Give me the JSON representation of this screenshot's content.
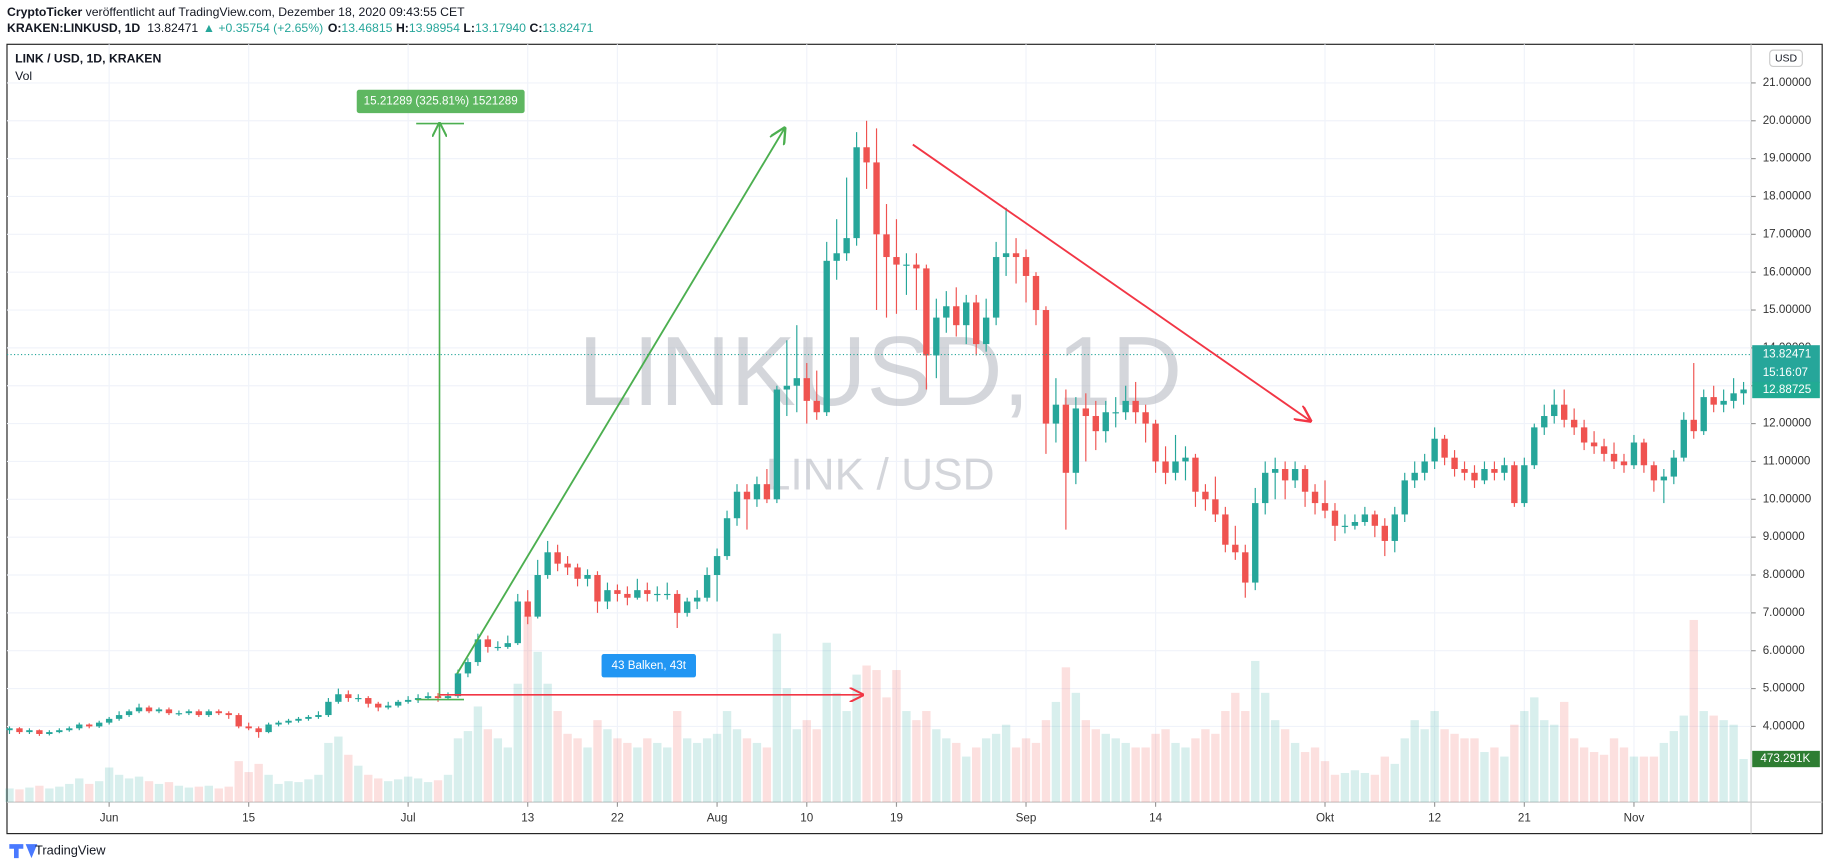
{
  "header": {
    "publisher": "CryptoTicker",
    "published": " veröffentlicht auf TradingView.com, Dezember 18, 2020 09:43:55 CET",
    "symbol": "KRAKEN:LINKUSD, 1D",
    "last": "13.82471",
    "change": "▲ +0.35754 (+2.65%)",
    "ohlc": [
      {
        "label": "O:",
        "value": "13.46815"
      },
      {
        "label": "H:",
        "value": "13.98954"
      },
      {
        "label": "L:",
        "value": "13.17940"
      },
      {
        "label": "C:",
        "value": "13.82471"
      }
    ]
  },
  "footer": "TradingView",
  "chart_data": {
    "type": "candlestick",
    "legend": [
      "LINK / USD, 1D, KRAKEN",
      "Vol"
    ],
    "watermark": [
      "LINKUSD, 1D",
      "LINK / USD"
    ],
    "currency": "USD",
    "up_color": "#26a69a",
    "down_color": "#ef5350",
    "grid": true,
    "xlim": [
      -0.25,
      174.75
    ],
    "xticks": [
      {
        "value": 10,
        "label": "Jun"
      },
      {
        "value": 24,
        "label": "15"
      },
      {
        "value": 40,
        "label": "Jul"
      },
      {
        "value": 52,
        "label": "13"
      },
      {
        "value": 61,
        "label": "22"
      },
      {
        "value": 71,
        "label": "Aug"
      },
      {
        "value": 80,
        "label": "10"
      },
      {
        "value": 89,
        "label": "19"
      },
      {
        "value": 102,
        "label": "Sep"
      },
      {
        "value": 115,
        "label": "14"
      },
      {
        "value": 132,
        "label": "Okt"
      },
      {
        "value": 143,
        "label": "12"
      },
      {
        "value": 152,
        "label": "21"
      },
      {
        "value": 163,
        "label": "Nov"
      }
    ],
    "ylim": [
      2.0,
      22.02
    ],
    "yticks": [
      {
        "value": 4,
        "label": "4.00000"
      },
      {
        "value": 5,
        "label": "5.00000"
      },
      {
        "value": 6,
        "label": "6.00000"
      },
      {
        "value": 7,
        "label": "7.00000"
      },
      {
        "value": 8,
        "label": "8.00000"
      },
      {
        "value": 9,
        "label": "9.00000"
      },
      {
        "value": 10,
        "label": "10.00000"
      },
      {
        "value": 11,
        "label": "11.00000"
      },
      {
        "value": 12,
        "label": "12.00000"
      },
      {
        "value": 13,
        "label": "13.00000"
      },
      {
        "value": 14,
        "label": "14.00000"
      },
      {
        "value": 15,
        "label": "15.00000"
      },
      {
        "value": 16,
        "label": "16.00000"
      },
      {
        "value": 17,
        "label": "17.00000"
      },
      {
        "value": 18,
        "label": "18.00000"
      },
      {
        "value": 19,
        "label": "19.00000"
      },
      {
        "value": 20,
        "label": "20.00000"
      },
      {
        "value": 21,
        "label": "21.00000"
      }
    ],
    "last_price": {
      "value": 13.82471,
      "label": "13.82471"
    },
    "countdown": "15:16:07",
    "second_price": {
      "value": 12.88725,
      "label": "12.88725"
    },
    "volume_lim": [
      0,
      8320
    ],
    "volume_label": {
      "value": 473.291,
      "label": "473.291K"
    },
    "annotations": {
      "price_range": "15.21289 (325.81%) 1521289",
      "date_range": "43 Balken, 43t"
    },
    "candles": [
      [
        3.9,
        4.0,
        3.8,
        3.95
      ],
      [
        3.95,
        3.98,
        3.8,
        3.85
      ],
      [
        3.85,
        3.95,
        3.8,
        3.9
      ],
      [
        3.9,
        3.92,
        3.75,
        3.8
      ],
      [
        3.8,
        3.9,
        3.76,
        3.85
      ],
      [
        3.85,
        3.95,
        3.82,
        3.9
      ],
      [
        3.9,
        4.0,
        3.86,
        3.95
      ],
      [
        3.95,
        4.1,
        3.9,
        4.05
      ],
      [
        4.05,
        4.08,
        3.95,
        4.0
      ],
      [
        4.0,
        4.15,
        3.96,
        4.1
      ],
      [
        4.1,
        4.25,
        4.05,
        4.2
      ],
      [
        4.2,
        4.4,
        4.15,
        4.3
      ],
      [
        4.3,
        4.45,
        4.25,
        4.4
      ],
      [
        4.4,
        4.6,
        4.35,
        4.5
      ],
      [
        4.5,
        4.55,
        4.35,
        4.4
      ],
      [
        4.4,
        4.5,
        4.35,
        4.45
      ],
      [
        4.45,
        4.5,
        4.3,
        4.35
      ],
      [
        4.35,
        4.42,
        4.28,
        4.35
      ],
      [
        4.35,
        4.45,
        4.3,
        4.4
      ],
      [
        4.4,
        4.45,
        4.25,
        4.3
      ],
      [
        4.3,
        4.45,
        4.25,
        4.4
      ],
      [
        4.4,
        4.45,
        4.3,
        4.35
      ],
      [
        4.35,
        4.4,
        4.2,
        4.3
      ],
      [
        4.3,
        4.35,
        3.95,
        4.0
      ],
      [
        4.0,
        4.1,
        3.9,
        3.95
      ],
      [
        3.95,
        4.0,
        3.7,
        3.85
      ],
      [
        3.85,
        4.1,
        3.82,
        4.05
      ],
      [
        4.05,
        4.15,
        4.0,
        4.1
      ],
      [
        4.1,
        4.2,
        4.05,
        4.15
      ],
      [
        4.15,
        4.25,
        4.1,
        4.2
      ],
      [
        4.2,
        4.3,
        4.15,
        4.25
      ],
      [
        4.25,
        4.4,
        4.2,
        4.3
      ],
      [
        4.3,
        4.75,
        4.25,
        4.65
      ],
      [
        4.65,
        5.0,
        4.6,
        4.85
      ],
      [
        4.85,
        4.95,
        4.65,
        4.75
      ],
      [
        4.75,
        4.85,
        4.65,
        4.75
      ],
      [
        4.75,
        4.8,
        4.5,
        4.6
      ],
      [
        4.6,
        4.65,
        4.4,
        4.5
      ],
      [
        4.5,
        4.65,
        4.45,
        4.55
      ],
      [
        4.55,
        4.7,
        4.5,
        4.65
      ],
      [
        4.65,
        4.8,
        4.6,
        4.7
      ],
      [
        4.7,
        4.85,
        4.62,
        4.75
      ],
      [
        4.75,
        4.9,
        4.7,
        4.8
      ],
      [
        4.8,
        4.88,
        4.65,
        4.75
      ],
      [
        4.75,
        4.9,
        4.7,
        4.8
      ],
      [
        4.8,
        5.5,
        4.75,
        5.4
      ],
      [
        5.4,
        5.8,
        5.3,
        5.7
      ],
      [
        5.7,
        6.45,
        5.6,
        6.3
      ],
      [
        6.3,
        6.4,
        5.95,
        6.1
      ],
      [
        6.1,
        6.25,
        6.0,
        6.1
      ],
      [
        6.1,
        6.4,
        6.05,
        6.2
      ],
      [
        6.2,
        7.5,
        6.15,
        7.3
      ],
      [
        7.3,
        7.6,
        6.7,
        6.9
      ],
      [
        6.9,
        8.4,
        6.85,
        8.0
      ],
      [
        8.0,
        8.9,
        7.9,
        8.6
      ],
      [
        8.6,
        8.8,
        8.1,
        8.3
      ],
      [
        8.3,
        8.5,
        8.0,
        8.2
      ],
      [
        8.2,
        8.3,
        7.7,
        7.9
      ],
      [
        7.9,
        8.15,
        7.7,
        8.0
      ],
      [
        8.0,
        8.1,
        7.0,
        7.3
      ],
      [
        7.3,
        7.8,
        7.1,
        7.6
      ],
      [
        7.6,
        7.75,
        7.3,
        7.5
      ],
      [
        7.5,
        7.7,
        7.2,
        7.4
      ],
      [
        7.4,
        7.9,
        7.35,
        7.6
      ],
      [
        7.6,
        7.8,
        7.3,
        7.5
      ],
      [
        7.5,
        7.7,
        7.3,
        7.5
      ],
      [
        7.5,
        7.8,
        7.35,
        7.5
      ],
      [
        7.5,
        7.6,
        6.6,
        7.0
      ],
      [
        7.0,
        7.4,
        6.9,
        7.3
      ],
      [
        7.3,
        7.6,
        7.1,
        7.4
      ],
      [
        7.4,
        8.2,
        7.3,
        8.0
      ],
      [
        8.0,
        8.7,
        7.3,
        8.5
      ],
      [
        8.5,
        9.7,
        8.4,
        9.5
      ],
      [
        9.5,
        10.4,
        9.3,
        10.2
      ],
      [
        10.2,
        10.4,
        9.2,
        10.0
      ],
      [
        10.0,
        10.6,
        9.8,
        10.4
      ],
      [
        10.4,
        10.8,
        9.9,
        10.0
      ],
      [
        10.0,
        13.0,
        9.9,
        12.9
      ],
      [
        12.9,
        14.2,
        12.2,
        13.0
      ],
      [
        13.0,
        14.6,
        12.3,
        13.2
      ],
      [
        13.2,
        13.6,
        12.0,
        12.6
      ],
      [
        12.6,
        13.4,
        12.1,
        12.3
      ],
      [
        12.3,
        16.8,
        12.2,
        16.3
      ],
      [
        16.3,
        17.4,
        15.8,
        16.5
      ],
      [
        16.5,
        18.5,
        16.3,
        16.9
      ],
      [
        16.9,
        19.7,
        16.7,
        19.3
      ],
      [
        19.3,
        20.0,
        18.2,
        18.9
      ],
      [
        18.9,
        19.8,
        15.0,
        17.0
      ],
      [
        17.0,
        17.8,
        14.8,
        16.4
      ],
      [
        16.4,
        17.4,
        14.9,
        16.2
      ],
      [
        16.2,
        16.5,
        15.4,
        16.2
      ],
      [
        16.2,
        16.5,
        15.0,
        16.1
      ],
      [
        16.1,
        16.2,
        12.9,
        13.8
      ],
      [
        13.8,
        15.3,
        13.2,
        14.8
      ],
      [
        14.8,
        15.5,
        14.4,
        15.1
      ],
      [
        15.1,
        15.6,
        14.3,
        14.6
      ],
      [
        14.6,
        15.4,
        14.1,
        15.2
      ],
      [
        15.2,
        15.4,
        13.8,
        14.1
      ],
      [
        14.1,
        15.3,
        13.9,
        14.8
      ],
      [
        14.8,
        16.8,
        14.6,
        16.4
      ],
      [
        16.4,
        17.7,
        15.9,
        16.5
      ],
      [
        16.5,
        16.9,
        15.7,
        16.4
      ],
      [
        16.4,
        16.6,
        15.2,
        15.9
      ],
      [
        15.9,
        16.0,
        14.6,
        15.0
      ],
      [
        15.0,
        15.1,
        11.2,
        12.0
      ],
      [
        12.0,
        13.2,
        11.5,
        12.5
      ],
      [
        12.5,
        12.9,
        9.2,
        10.7
      ],
      [
        10.7,
        12.7,
        10.4,
        12.4
      ],
      [
        12.4,
        12.8,
        11.0,
        12.2
      ],
      [
        12.2,
        12.6,
        11.3,
        11.8
      ],
      [
        11.8,
        12.6,
        11.5,
        12.3
      ],
      [
        12.3,
        12.7,
        11.9,
        12.3
      ],
      [
        12.3,
        13.0,
        12.1,
        12.6
      ],
      [
        12.6,
        13.1,
        12.0,
        12.3
      ],
      [
        12.3,
        12.5,
        11.5,
        12.0
      ],
      [
        12.0,
        12.1,
        10.7,
        11.0
      ],
      [
        11.0,
        11.4,
        10.4,
        10.7
      ],
      [
        10.7,
        11.7,
        10.5,
        11.0
      ],
      [
        11.0,
        11.4,
        10.5,
        11.1
      ],
      [
        11.1,
        11.2,
        9.8,
        10.2
      ],
      [
        10.2,
        10.4,
        9.7,
        10.0
      ],
      [
        10.0,
        10.6,
        9.4,
        9.6
      ],
      [
        9.6,
        9.8,
        8.6,
        8.8
      ],
      [
        8.8,
        9.3,
        8.4,
        8.6
      ],
      [
        8.6,
        8.8,
        7.4,
        7.8
      ],
      [
        7.8,
        10.3,
        7.6,
        9.9
      ],
      [
        9.9,
        11.0,
        9.6,
        10.7
      ],
      [
        10.7,
        11.1,
        10.0,
        10.8
      ],
      [
        10.8,
        11.0,
        10.0,
        10.5
      ],
      [
        10.5,
        11.0,
        10.3,
        10.8
      ],
      [
        10.8,
        10.9,
        9.8,
        10.2
      ],
      [
        10.2,
        10.4,
        9.6,
        9.9
      ],
      [
        9.9,
        10.5,
        9.5,
        9.7
      ],
      [
        9.7,
        9.9,
        8.9,
        9.3
      ],
      [
        9.3,
        9.6,
        9.1,
        9.3
      ],
      [
        9.3,
        9.6,
        9.2,
        9.4
      ],
      [
        9.4,
        9.8,
        9.3,
        9.6
      ],
      [
        9.6,
        9.7,
        9.0,
        9.3
      ],
      [
        9.3,
        9.5,
        8.5,
        8.9
      ],
      [
        8.9,
        9.8,
        8.6,
        9.6
      ],
      [
        9.6,
        10.7,
        9.4,
        10.5
      ],
      [
        10.5,
        11.0,
        10.3,
        10.7
      ],
      [
        10.7,
        11.2,
        10.5,
        11.0
      ],
      [
        11.0,
        11.9,
        10.8,
        11.6
      ],
      [
        11.6,
        11.7,
        10.9,
        11.1
      ],
      [
        11.1,
        11.3,
        10.6,
        10.8
      ],
      [
        10.8,
        11.0,
        10.5,
        10.7
      ],
      [
        10.7,
        10.9,
        10.3,
        10.5
      ],
      [
        10.5,
        11.0,
        10.4,
        10.8
      ],
      [
        10.8,
        11.0,
        10.5,
        10.7
      ],
      [
        10.7,
        11.1,
        10.5,
        10.9
      ],
      [
        10.9,
        11.0,
        9.8,
        9.9
      ],
      [
        9.9,
        11.1,
        9.8,
        10.9
      ],
      [
        10.9,
        12.0,
        10.8,
        11.9
      ],
      [
        11.9,
        12.5,
        11.7,
        12.2
      ],
      [
        12.2,
        12.9,
        12.0,
        12.5
      ],
      [
        12.5,
        12.9,
        11.9,
        12.1
      ],
      [
        12.1,
        12.4,
        11.7,
        11.9
      ],
      [
        11.9,
        12.1,
        11.3,
        11.5
      ],
      [
        11.5,
        11.8,
        11.2,
        11.4
      ],
      [
        11.4,
        11.6,
        11.0,
        11.2
      ],
      [
        11.2,
        11.5,
        10.8,
        11.0
      ],
      [
        11.0,
        11.2,
        10.7,
        10.9
      ],
      [
        10.9,
        11.7,
        10.8,
        11.5
      ],
      [
        11.5,
        11.6,
        10.7,
        10.9
      ],
      [
        10.9,
        11.0,
        10.2,
        10.5
      ],
      [
        10.5,
        10.8,
        9.9,
        10.6
      ],
      [
        10.6,
        11.3,
        10.4,
        11.1
      ],
      [
        11.1,
        12.3,
        11.0,
        12.1
      ],
      [
        12.1,
        13.6,
        11.6,
        11.8
      ],
      [
        11.8,
        12.9,
        11.7,
        12.7
      ],
      [
        12.7,
        13.0,
        12.3,
        12.5
      ],
      [
        12.5,
        12.9,
        12.3,
        12.6
      ],
      [
        12.6,
        13.2,
        12.4,
        12.8
      ],
      [
        12.8,
        13.1,
        12.5,
        12.9
      ]
    ],
    "volume": [
      150,
      140,
      160,
      180,
      150,
      170,
      200,
      260,
      200,
      230,
      380,
      300,
      260,
      280,
      230,
      200,
      220,
      180,
      160,
      170,
      180,
      150,
      170,
      450,
      330,
      420,
      300,
      200,
      230,
      220,
      250,
      300,
      650,
      720,
      520,
      400,
      300,
      260,
      230,
      250,
      280,
      260,
      220,
      240,
      300,
      700,
      780,
      1050,
      800,
      700,
      600,
      1300,
      2050,
      1650,
      1300,
      1000,
      750,
      700,
      600,
      900,
      800,
      700,
      650,
      600,
      700,
      650,
      600,
      1000,
      700,
      650,
      700,
      750,
      1000,
      800,
      700,
      650,
      600,
      1850,
      1250,
      800,
      900,
      800,
      1750,
      1200,
      1000,
      1400,
      1500,
      1450,
      1150,
      1450,
      1000,
      900,
      1000,
      800,
      700,
      650,
      500,
      600,
      700,
      750,
      850,
      600,
      700,
      650,
      900,
      1100,
      1480,
      1200,
      900,
      800,
      750,
      700,
      650,
      600,
      600,
      750,
      800,
      650,
      600,
      700,
      800,
      750,
      1000,
      1200,
      1000,
      1550,
      1200,
      900,
      800,
      650,
      550,
      600,
      450,
      300,
      320,
      350,
      320,
      300,
      500,
      420,
      700,
      900,
      800,
      1000,
      800,
      750,
      700,
      700,
      550,
      600,
      500,
      850,
      1000,
      1150,
      900,
      850,
      1100,
      700,
      600,
      550,
      520,
      700,
      600,
      500,
      500,
      500,
      650,
      780,
      950,
      2000,
      1000,
      950,
      900,
      850,
      473.291
    ]
  }
}
